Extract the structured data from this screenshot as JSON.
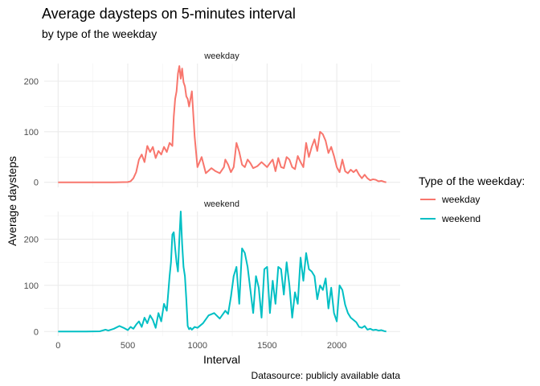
{
  "chart_data": {
    "type": "line",
    "title": "Average daysteps on 5-minutes interval",
    "subtitle": "by type of the weekday",
    "xlabel": "Interval",
    "ylabel": "Average daysteps",
    "caption": "Datasource: publicly available data",
    "legend": {
      "title": "Type of the weekday:",
      "position": "right",
      "entries": [
        "weekday",
        "weekend"
      ]
    },
    "grid": true,
    "xlim": [
      -100,
      2455
    ],
    "x_ticks": [
      0,
      500,
      1000,
      1500,
      2000
    ],
    "panels": [
      {
        "strip_label": "weekday",
        "ylim": [
          -10,
          235
        ],
        "y_ticks": [
          0,
          100,
          200
        ],
        "series": [
          {
            "name": "weekday",
            "color": "#F8766D",
            "x": [
              0,
              100,
              200,
              300,
              400,
              500,
              520,
              540,
              560,
              580,
              600,
              620,
              640,
              660,
              680,
              700,
              720,
              740,
              760,
              780,
              800,
              820,
              830,
              840,
              850,
              860,
              870,
              880,
              890,
              900,
              910,
              920,
              930,
              940,
              960,
              980,
              1000,
              1030,
              1060,
              1100,
              1130,
              1160,
              1190,
              1200,
              1220,
              1240,
              1260,
              1280,
              1300,
              1320,
              1340,
              1360,
              1380,
              1400,
              1430,
              1460,
              1500,
              1520,
              1540,
              1560,
              1580,
              1600,
              1620,
              1640,
              1660,
              1680,
              1700,
              1720,
              1740,
              1760,
              1780,
              1800,
              1820,
              1840,
              1860,
              1880,
              1900,
              1920,
              1940,
              1960,
              1980,
              2000,
              2020,
              2040,
              2060,
              2080,
              2100,
              2120,
              2140,
              2160,
              2180,
              2200,
              2220,
              2240,
              2260,
              2280,
              2300,
              2320,
              2340,
              2355
            ],
            "y": [
              0,
              0,
              0,
              0,
              0,
              0.5,
              2,
              8,
              20,
              45,
              55,
              40,
              72,
              60,
              70,
              48,
              62,
              55,
              70,
              60,
              78,
              72,
              130,
              165,
              180,
              215,
              230,
              205,
              225,
              198,
              190,
              170,
              165,
              150,
              180,
              90,
              30,
              50,
              18,
              28,
              22,
              18,
              30,
              45,
              35,
              20,
              30,
              78,
              60,
              35,
              30,
              45,
              38,
              28,
              32,
              40,
              30,
              38,
              45,
              22,
              48,
              30,
              28,
              50,
              45,
              30,
              26,
              52,
              40,
              30,
              78,
              50,
              70,
              85,
              62,
              100,
              95,
              82,
              58,
              70,
              52,
              30,
              20,
              45,
              22,
              18,
              25,
              20,
              25,
              15,
              8,
              15,
              8,
              4,
              6,
              5,
              2,
              3,
              1,
              0
            ]
          }
        ]
      },
      {
        "strip_label": "weekend",
        "ylim": [
          -10,
          260
        ],
        "y_ticks": [
          0,
          100,
          200
        ],
        "series": [
          {
            "name": "weekend",
            "color": "#00BFC4",
            "x": [
              0,
              100,
              200,
              300,
              340,
              360,
              400,
              440,
              470,
              500,
              520,
              540,
              560,
              580,
              600,
              620,
              640,
              660,
              680,
              700,
              720,
              740,
              760,
              780,
              800,
              810,
              820,
              830,
              840,
              850,
              860,
              870,
              880,
              890,
              900,
              910,
              920,
              930,
              940,
              950,
              960,
              980,
              1000,
              1040,
              1080,
              1120,
              1160,
              1200,
              1220,
              1240,
              1260,
              1280,
              1300,
              1320,
              1340,
              1360,
              1380,
              1400,
              1420,
              1440,
              1460,
              1480,
              1500,
              1520,
              1540,
              1560,
              1580,
              1600,
              1620,
              1640,
              1660,
              1680,
              1700,
              1720,
              1740,
              1760,
              1780,
              1800,
              1820,
              1840,
              1860,
              1880,
              1900,
              1920,
              1940,
              1960,
              1980,
              2000,
              2020,
              2040,
              2060,
              2080,
              2100,
              2120,
              2140,
              2160,
              2180,
              2200,
              2220,
              2240,
              2260,
              2280,
              2300,
              2320,
              2340,
              2355
            ],
            "y": [
              0,
              0,
              0,
              0.5,
              4,
              2,
              6,
              12,
              8,
              3,
              10,
              6,
              15,
              22,
              10,
              30,
              18,
              35,
              25,
              8,
              40,
              22,
              60,
              45,
              120,
              150,
              210,
              215,
              180,
              150,
              130,
              200,
              260,
              190,
              140,
              120,
              70,
              12,
              5,
              8,
              4,
              10,
              8,
              18,
              35,
              40,
              28,
              45,
              38,
              75,
              120,
              140,
              60,
              180,
              170,
              140,
              90,
              40,
              120,
              95,
              30,
              135,
              140,
              40,
              110,
              60,
              140,
              135,
              80,
              150,
              100,
              30,
              85,
              60,
              160,
              110,
              170,
              135,
              130,
              120,
              70,
              100,
              90,
              115,
              50,
              95,
              40,
              22,
              100,
              90,
              58,
              40,
              30,
              25,
              20,
              10,
              8,
              12,
              4,
              6,
              3,
              4,
              2,
              3,
              1,
              0
            ]
          }
        ]
      }
    ]
  }
}
